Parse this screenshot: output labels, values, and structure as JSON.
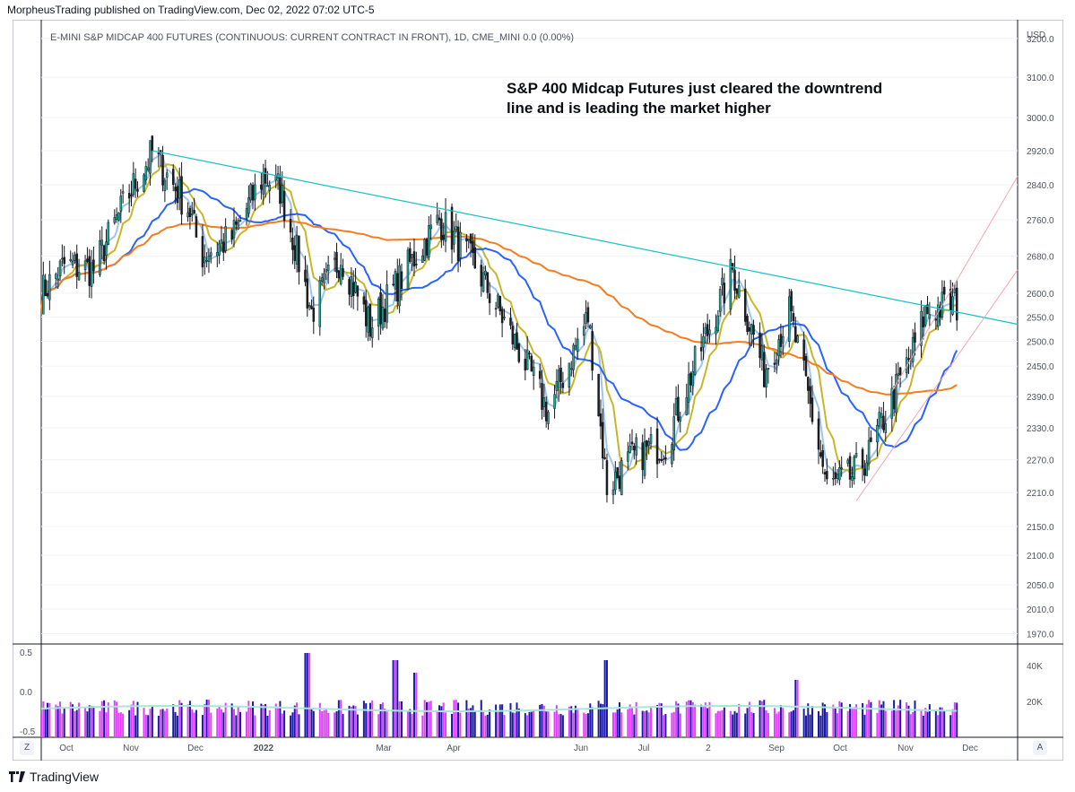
{
  "header": {
    "publisher": "MorpheusTrading published on TradingView.com, Dec 02, 2022 07:02 UTC-5"
  },
  "symbol_line": "E-MINI S&P MIDCAP 400 FUTURES (CONTINUOUS: CURRENT CONTRACT IN FRONT), 1D, CME_MINI  0.0 (0.00%)",
  "annotation": "S&P 400 Midcap Futures just cleared the downtrend line and is leading the market higher",
  "footer": {
    "brand": "TradingView"
  },
  "controls": {
    "left_button": "Z",
    "right_button": "A"
  },
  "colors": {
    "bull_candle": "#26a69a",
    "bear_candle": "#1e1e1e",
    "candle_wick": "#131722",
    "trendline": "#17c1c9",
    "channel": "#f4a6b4",
    "ma_fast": "#9ec5ea",
    "ma_mid": "#c8b52b",
    "ma_blue": "#2962ff",
    "ma_orange": "#f57c1f",
    "vol_up": "#e040fb",
    "vol_down": "#1a1aa6",
    "vol_ma": "#a8e6d8"
  },
  "chart_data": {
    "type": "candlestick",
    "title": "",
    "currency": "USD",
    "price_axis": {
      "labels": [
        "3200.0",
        "3100.0",
        "3000.0",
        "2920.0",
        "2840.0",
        "2760.0",
        "2680.0",
        "2600.0",
        "2550.0",
        "2500.0",
        "2450.0",
        "2390.0",
        "2330.0",
        "2270.0",
        "2210.0",
        "2150.0",
        "2100.0",
        "2050.0",
        "2010.0",
        "1970.0"
      ],
      "ylim": [
        1955,
        3230
      ],
      "scale": "log"
    },
    "time_axis": {
      "labels": [
        "Oct",
        "Nov",
        "Dec",
        "2022",
        "Mar",
        "Apr",
        "Jun",
        "Jul",
        "2",
        "Sep",
        "Oct",
        "Nov",
        "Dec"
      ],
      "range": [
        "2021-09-20",
        "2022-12-30"
      ]
    },
    "price_path": [
      {
        "date": "2021-09-20",
        "price": 2600
      },
      {
        "date": "2021-10-01",
        "price": 2660
      },
      {
        "date": "2021-10-15",
        "price": 2650
      },
      {
        "date": "2021-11-01",
        "price": 2820
      },
      {
        "date": "2021-11-12",
        "price": 2915
      },
      {
        "date": "2021-11-30",
        "price": 2780
      },
      {
        "date": "2021-12-05",
        "price": 2680
      },
      {
        "date": "2021-12-20",
        "price": 2720
      },
      {
        "date": "2022-01-04",
        "price": 2860
      },
      {
        "date": "2022-01-12",
        "price": 2830
      },
      {
        "date": "2022-01-27",
        "price": 2560
      },
      {
        "date": "2022-02-10",
        "price": 2680
      },
      {
        "date": "2022-02-24",
        "price": 2530
      },
      {
        "date": "2022-03-29",
        "price": 2760
      },
      {
        "date": "2022-04-15",
        "price": 2660
      },
      {
        "date": "2022-05-12",
        "price": 2430
      },
      {
        "date": "2022-05-20",
        "price": 2360
      },
      {
        "date": "2022-06-08",
        "price": 2550
      },
      {
        "date": "2022-06-17",
        "price": 2220
      },
      {
        "date": "2022-07-01",
        "price": 2280
      },
      {
        "date": "2022-07-15",
        "price": 2300
      },
      {
        "date": "2022-08-16",
        "price": 2650
      },
      {
        "date": "2022-08-31",
        "price": 2440
      },
      {
        "date": "2022-09-12",
        "price": 2560
      },
      {
        "date": "2022-09-30",
        "price": 2220
      },
      {
        "date": "2022-10-12",
        "price": 2240
      },
      {
        "date": "2022-10-20",
        "price": 2280
      },
      {
        "date": "2022-11-10",
        "price": 2480
      },
      {
        "date": "2022-11-16",
        "price": 2560
      },
      {
        "date": "2022-11-30",
        "price": 2580
      },
      {
        "date": "2022-12-01",
        "price": 2573
      }
    ],
    "moving_averages": [
      {
        "name": "",
        "color_key": "ma_fast",
        "period": 5
      },
      {
        "name": "",
        "color_key": "ma_mid",
        "period": 10
      },
      {
        "name": "",
        "color_key": "ma_blue",
        "period": 30
      },
      {
        "name": "",
        "color_key": "ma_orange",
        "period": 120
      }
    ],
    "trendline": [
      {
        "date": "2021-11-12",
        "price": 2920
      },
      {
        "date": "2022-12-30",
        "price": 2535
      }
    ],
    "channel": {
      "lower": [
        {
          "date": "2022-10-14",
          "price": 2195
        },
        {
          "date": "2022-12-30",
          "price": 2650
        }
      ],
      "upper": [
        {
          "date": "2022-10-31",
          "price": 2400
        },
        {
          "date": "2022-12-30",
          "price": 2860
        }
      ]
    },
    "volume": {
      "axis_right": [
        "40K",
        "20K"
      ],
      "axis_left": [
        "0.5",
        "0.0",
        "-0.5"
      ],
      "spikes": [
        {
          "date": "2022-01-25",
          "value": 47000
        },
        {
          "date": "2022-03-08",
          "value": 43000
        },
        {
          "date": "2022-03-18",
          "value": 36000
        },
        {
          "date": "2022-06-17",
          "value": 43000
        },
        {
          "date": "2022-09-16",
          "value": 32000
        }
      ]
    }
  }
}
